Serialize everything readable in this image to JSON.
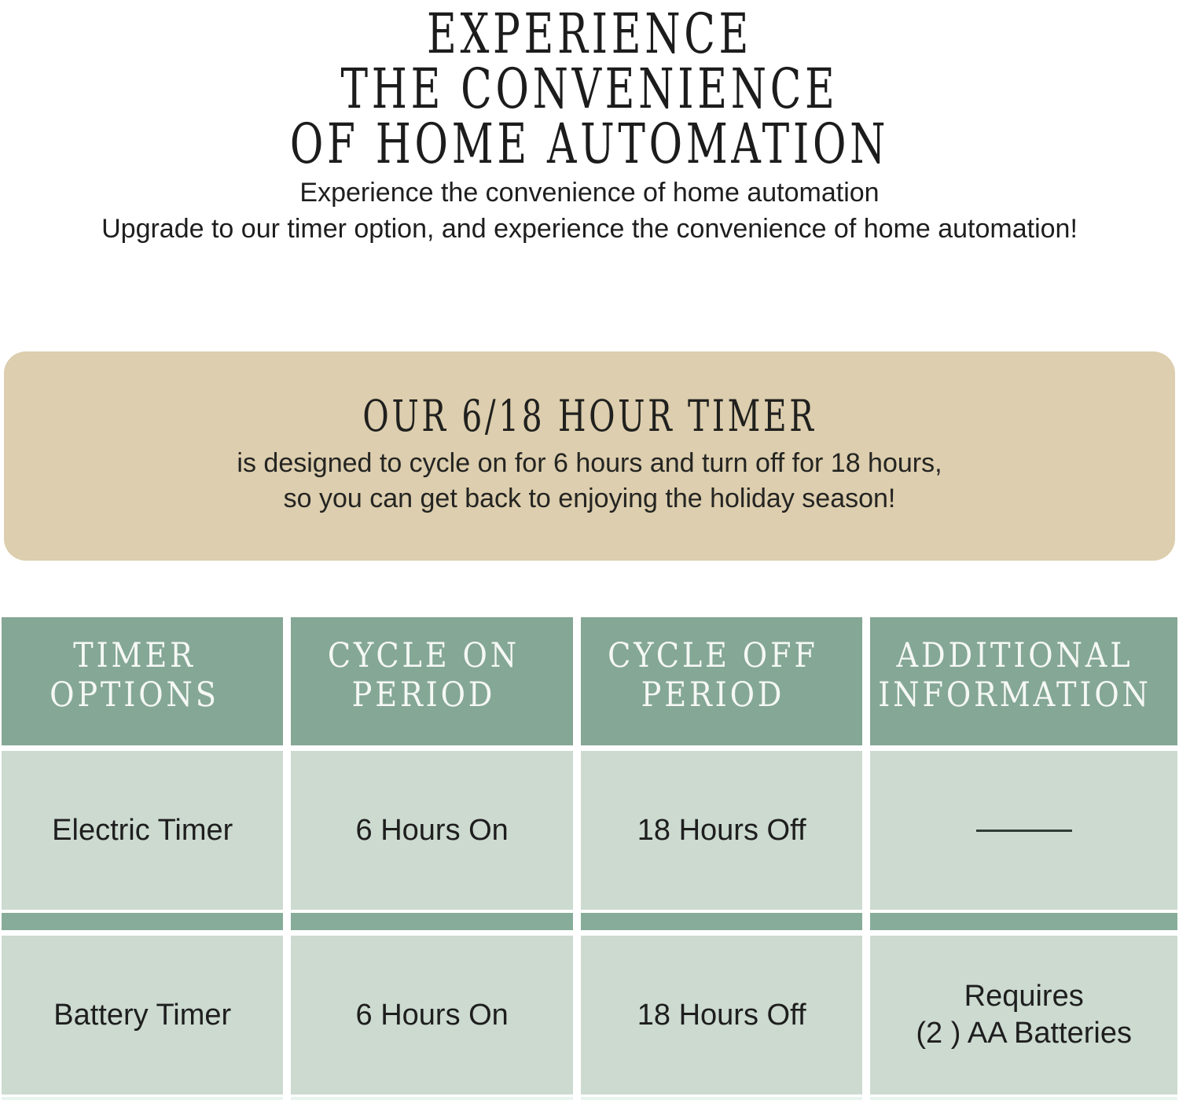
{
  "header": {
    "title_lines": [
      "EXPERIENCE",
      "THE CONVENIENCE",
      "OF HOME AUTOMATION"
    ],
    "subtitle_lines": [
      "Experience the convenience of home automation",
      "Upgrade to our timer option, and experience the convenience of home automation!"
    ]
  },
  "promo_box": {
    "heading": "OUR 6/18 HOUR TIMER",
    "body_lines": [
      "is designed to cycle on for 6 hours and turn off for 18 hours,",
      "so you can get back to enjoying the holiday season!"
    ]
  },
  "comparison_table": {
    "column_headers": [
      "TIMER OPTIONS",
      "CYCLE ON PERIOD",
      "CYCLE OFF PERIOD",
      "ADDITIONAL INFORMATION"
    ],
    "rows": [
      {
        "timer_option": "Electric Timer",
        "cycle_on_period": "6 Hours On",
        "cycle_off_period": "18 Hours Off",
        "additional_information": "—"
      },
      {
        "timer_option": "Battery Timer",
        "cycle_on_period": "6 Hours On",
        "cycle_off_period": "18 Hours Off",
        "additional_information_lines": [
          "Requires",
          "(2 ) AA Batteries"
        ]
      }
    ]
  },
  "colors": {
    "table_header_green": "#85a795",
    "table_cell_green": "#ccdad0",
    "table_separator_green": "#87ad9a",
    "table_bottom_strip": "#e9f4ee",
    "promo_box_tan": "#dcceae",
    "text_dark": "#1e1e1e",
    "header_text_white": "#f5f8f5",
    "dash_line": "#2e3d35",
    "page_background": "#ffffff"
  }
}
